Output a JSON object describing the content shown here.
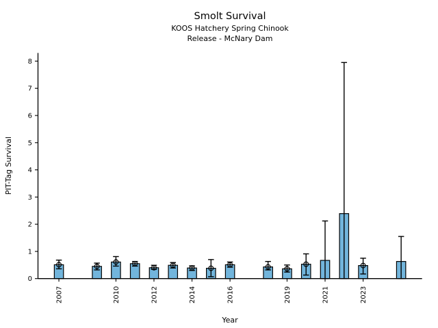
{
  "chart_data": {
    "type": "bar",
    "title": "Smolt Survival",
    "subtitle1": "KOOS Hatchery Spring Chinook",
    "subtitle2": "Release - McNary Dam",
    "xlabel": "Year",
    "ylabel": "PIT-Tag Survival",
    "grid": false,
    "legend": "none",
    "ylim": [
      0,
      8.3
    ],
    "yticks": [
      0,
      1,
      2,
      3,
      4,
      5,
      6,
      7,
      8
    ],
    "xlim": [
      2005.9,
      2026.1
    ],
    "xticks": [
      2007,
      2010,
      2012,
      2014,
      2016,
      2019,
      2021,
      2023
    ],
    "x_tick_label_rotation_deg": 90,
    "bar_color": "#72B5DC",
    "bar_edge_color": "#000000",
    "error_bar_color": "#000000",
    "marker_style": "open-circle",
    "bars": [
      {
        "year": 2007,
        "value": 0.51,
        "err_lo": 0.36,
        "err_hi": 0.68,
        "marker": true
      },
      {
        "year": 2009,
        "value": 0.45,
        "err_lo": 0.32,
        "err_hi": 0.57,
        "marker": true
      },
      {
        "year": 2010,
        "value": 0.61,
        "err_lo": 0.46,
        "err_hi": 0.81,
        "marker": true
      },
      {
        "year": 2011,
        "value": 0.55,
        "err_lo": 0.46,
        "err_hi": 0.63,
        "marker": true
      },
      {
        "year": 2012,
        "value": 0.4,
        "err_lo": 0.34,
        "err_hi": 0.49,
        "marker": true
      },
      {
        "year": 2013,
        "value": 0.49,
        "err_lo": 0.39,
        "err_hi": 0.59,
        "marker": true
      },
      {
        "year": 2014,
        "value": 0.39,
        "err_lo": 0.3,
        "err_hi": 0.47,
        "marker": true
      },
      {
        "year": 2015,
        "value": 0.38,
        "err_lo": 0.07,
        "err_hi": 0.7,
        "marker": true
      },
      {
        "year": 2016,
        "value": 0.51,
        "err_lo": 0.42,
        "err_hi": 0.61,
        "marker": true
      },
      {
        "year": 2018,
        "value": 0.43,
        "err_lo": 0.32,
        "err_hi": 0.63,
        "marker": true
      },
      {
        "year": 2019,
        "value": 0.36,
        "err_lo": 0.24,
        "err_hi": 0.5,
        "marker": true
      },
      {
        "year": 2020,
        "value": 0.53,
        "err_lo": 0.13,
        "err_hi": 0.91,
        "marker": true
      },
      {
        "year": 2021,
        "value": 0.67,
        "err_lo": 0.0,
        "err_hi": 2.12,
        "marker": false
      },
      {
        "year": 2022,
        "value": 2.39,
        "err_lo": 0.0,
        "err_hi": 7.95,
        "marker": false
      },
      {
        "year": 2023,
        "value": 0.48,
        "err_lo": 0.17,
        "err_hi": 0.75,
        "marker": true
      },
      {
        "year": 2025,
        "value": 0.63,
        "err_lo": 0.0,
        "err_hi": 1.55,
        "marker": false
      }
    ]
  }
}
